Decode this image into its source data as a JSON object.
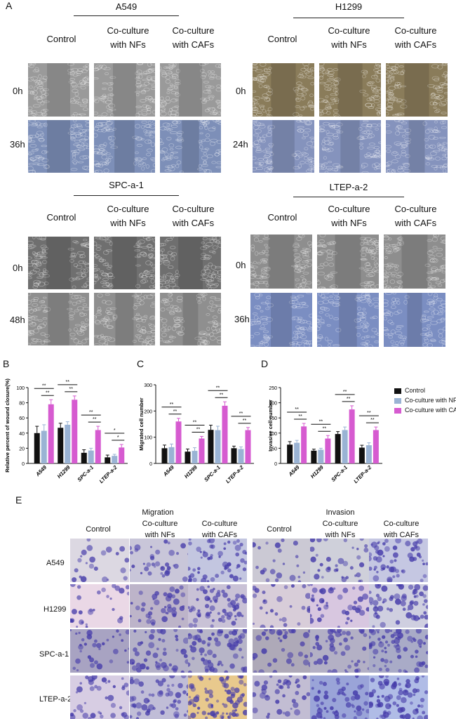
{
  "panel_letters": {
    "a": "A",
    "b": "B",
    "c": "C",
    "d": "D",
    "e": "E"
  },
  "wound": {
    "col_control": "Control",
    "col_nf_1": "Co-culture",
    "col_nf_2": "with NFs",
    "col_caf_1": "Co-culture",
    "col_caf_2": "with CAFs",
    "groups": [
      {
        "name": "A549",
        "t0": "0h",
        "t1": "36h"
      },
      {
        "name": "H1299",
        "t0": "0h",
        "t1": "24h"
      },
      {
        "name": "SPC-a-1",
        "t0": "0h",
        "t1": "48h"
      },
      {
        "name": "LTEP-a-2",
        "t0": "0h",
        "t1": "36h"
      }
    ]
  },
  "colors": {
    "control": "#111111",
    "nf": "#9ab3d4",
    "caf": "#d65bd0"
  },
  "legend": {
    "control": "Control",
    "nf": "Co-culture with NFs",
    "caf": "Co-culture with CAFs"
  },
  "chart_data": [
    {
      "type": "bar",
      "ylabel": "Relative percent of wound closure(%)",
      "categories": [
        "A549",
        "H1299",
        "SPC-a-1",
        "LTEP-a-2"
      ],
      "ylim": [
        0,
        100
      ],
      "yticks": [
        0,
        20,
        40,
        60,
        80,
        100
      ],
      "series": [
        {
          "name": "Control",
          "values": [
            40,
            47,
            14,
            8
          ],
          "errors": [
            9,
            6,
            4,
            3
          ]
        },
        {
          "name": "Co-culture with NFs",
          "values": [
            43,
            51,
            17,
            10
          ],
          "errors": [
            8,
            4,
            3,
            2
          ]
        },
        {
          "name": "Co-culture with CAFs",
          "values": [
            78,
            84,
            44,
            21
          ],
          "errors": [
            6,
            5,
            5,
            4
          ]
        }
      ],
      "significance": [
        [
          "**",
          "**"
        ],
        [
          "**",
          "**"
        ],
        [
          "**",
          "**"
        ],
        [
          "*",
          "*"
        ]
      ]
    },
    {
      "type": "bar",
      "ylabel": "Migrated cell number",
      "categories": [
        "A549",
        "H1299",
        "SPC-a-1",
        "LTEP-a-2"
      ],
      "ylim": [
        0,
        300
      ],
      "yticks": [
        0,
        100,
        200,
        300
      ],
      "series": [
        {
          "name": "Control",
          "values": [
            58,
            45,
            128,
            58
          ],
          "errors": [
            12,
            10,
            18,
            8
          ]
        },
        {
          "name": "Co-culture with NFs",
          "values": [
            62,
            48,
            127,
            55
          ],
          "errors": [
            12,
            12,
            15,
            8
          ]
        },
        {
          "name": "Co-culture with CAFs",
          "values": [
            160,
            95,
            220,
            127
          ],
          "errors": [
            12,
            8,
            15,
            10
          ]
        }
      ],
      "significance": [
        [
          "**",
          "**"
        ],
        [
          "**",
          "**"
        ],
        [
          "**",
          "**"
        ],
        [
          "**",
          "**"
        ]
      ]
    },
    {
      "type": "bar",
      "ylabel": "Invasive cell number",
      "categories": [
        "A549",
        "H1299",
        "SPC-a-1",
        "LTEP-a-2"
      ],
      "ylim": [
        0,
        250
      ],
      "yticks": [
        0,
        50,
        100,
        150,
        200,
        250
      ],
      "series": [
        {
          "name": "Control",
          "values": [
            62,
            42,
            97,
            52
          ],
          "errors": [
            10,
            5,
            8,
            8
          ]
        },
        {
          "name": "Co-culture with NFs",
          "values": [
            68,
            45,
            110,
            60
          ],
          "errors": [
            8,
            5,
            10,
            8
          ]
        },
        {
          "name": "Co-culture with CAFs",
          "values": [
            122,
            82,
            178,
            110
          ],
          "errors": [
            10,
            10,
            12,
            10
          ]
        }
      ],
      "significance": [
        [
          "**",
          "**"
        ],
        [
          "**",
          "**"
        ],
        [
          "**",
          "**"
        ],
        [
          "**",
          "**"
        ]
      ]
    }
  ],
  "transwell": {
    "migration_title": "Migration",
    "invasion_title": "Invasion",
    "col_control": "Control",
    "col_nf_1": "Co-culture",
    "col_nf_2": "with NFs",
    "col_caf_1": "Co-culture",
    "col_caf_2": "with CAFs",
    "rows": [
      "A549",
      "H1299",
      "SPC-a-1",
      "LTEP-a-2"
    ]
  }
}
